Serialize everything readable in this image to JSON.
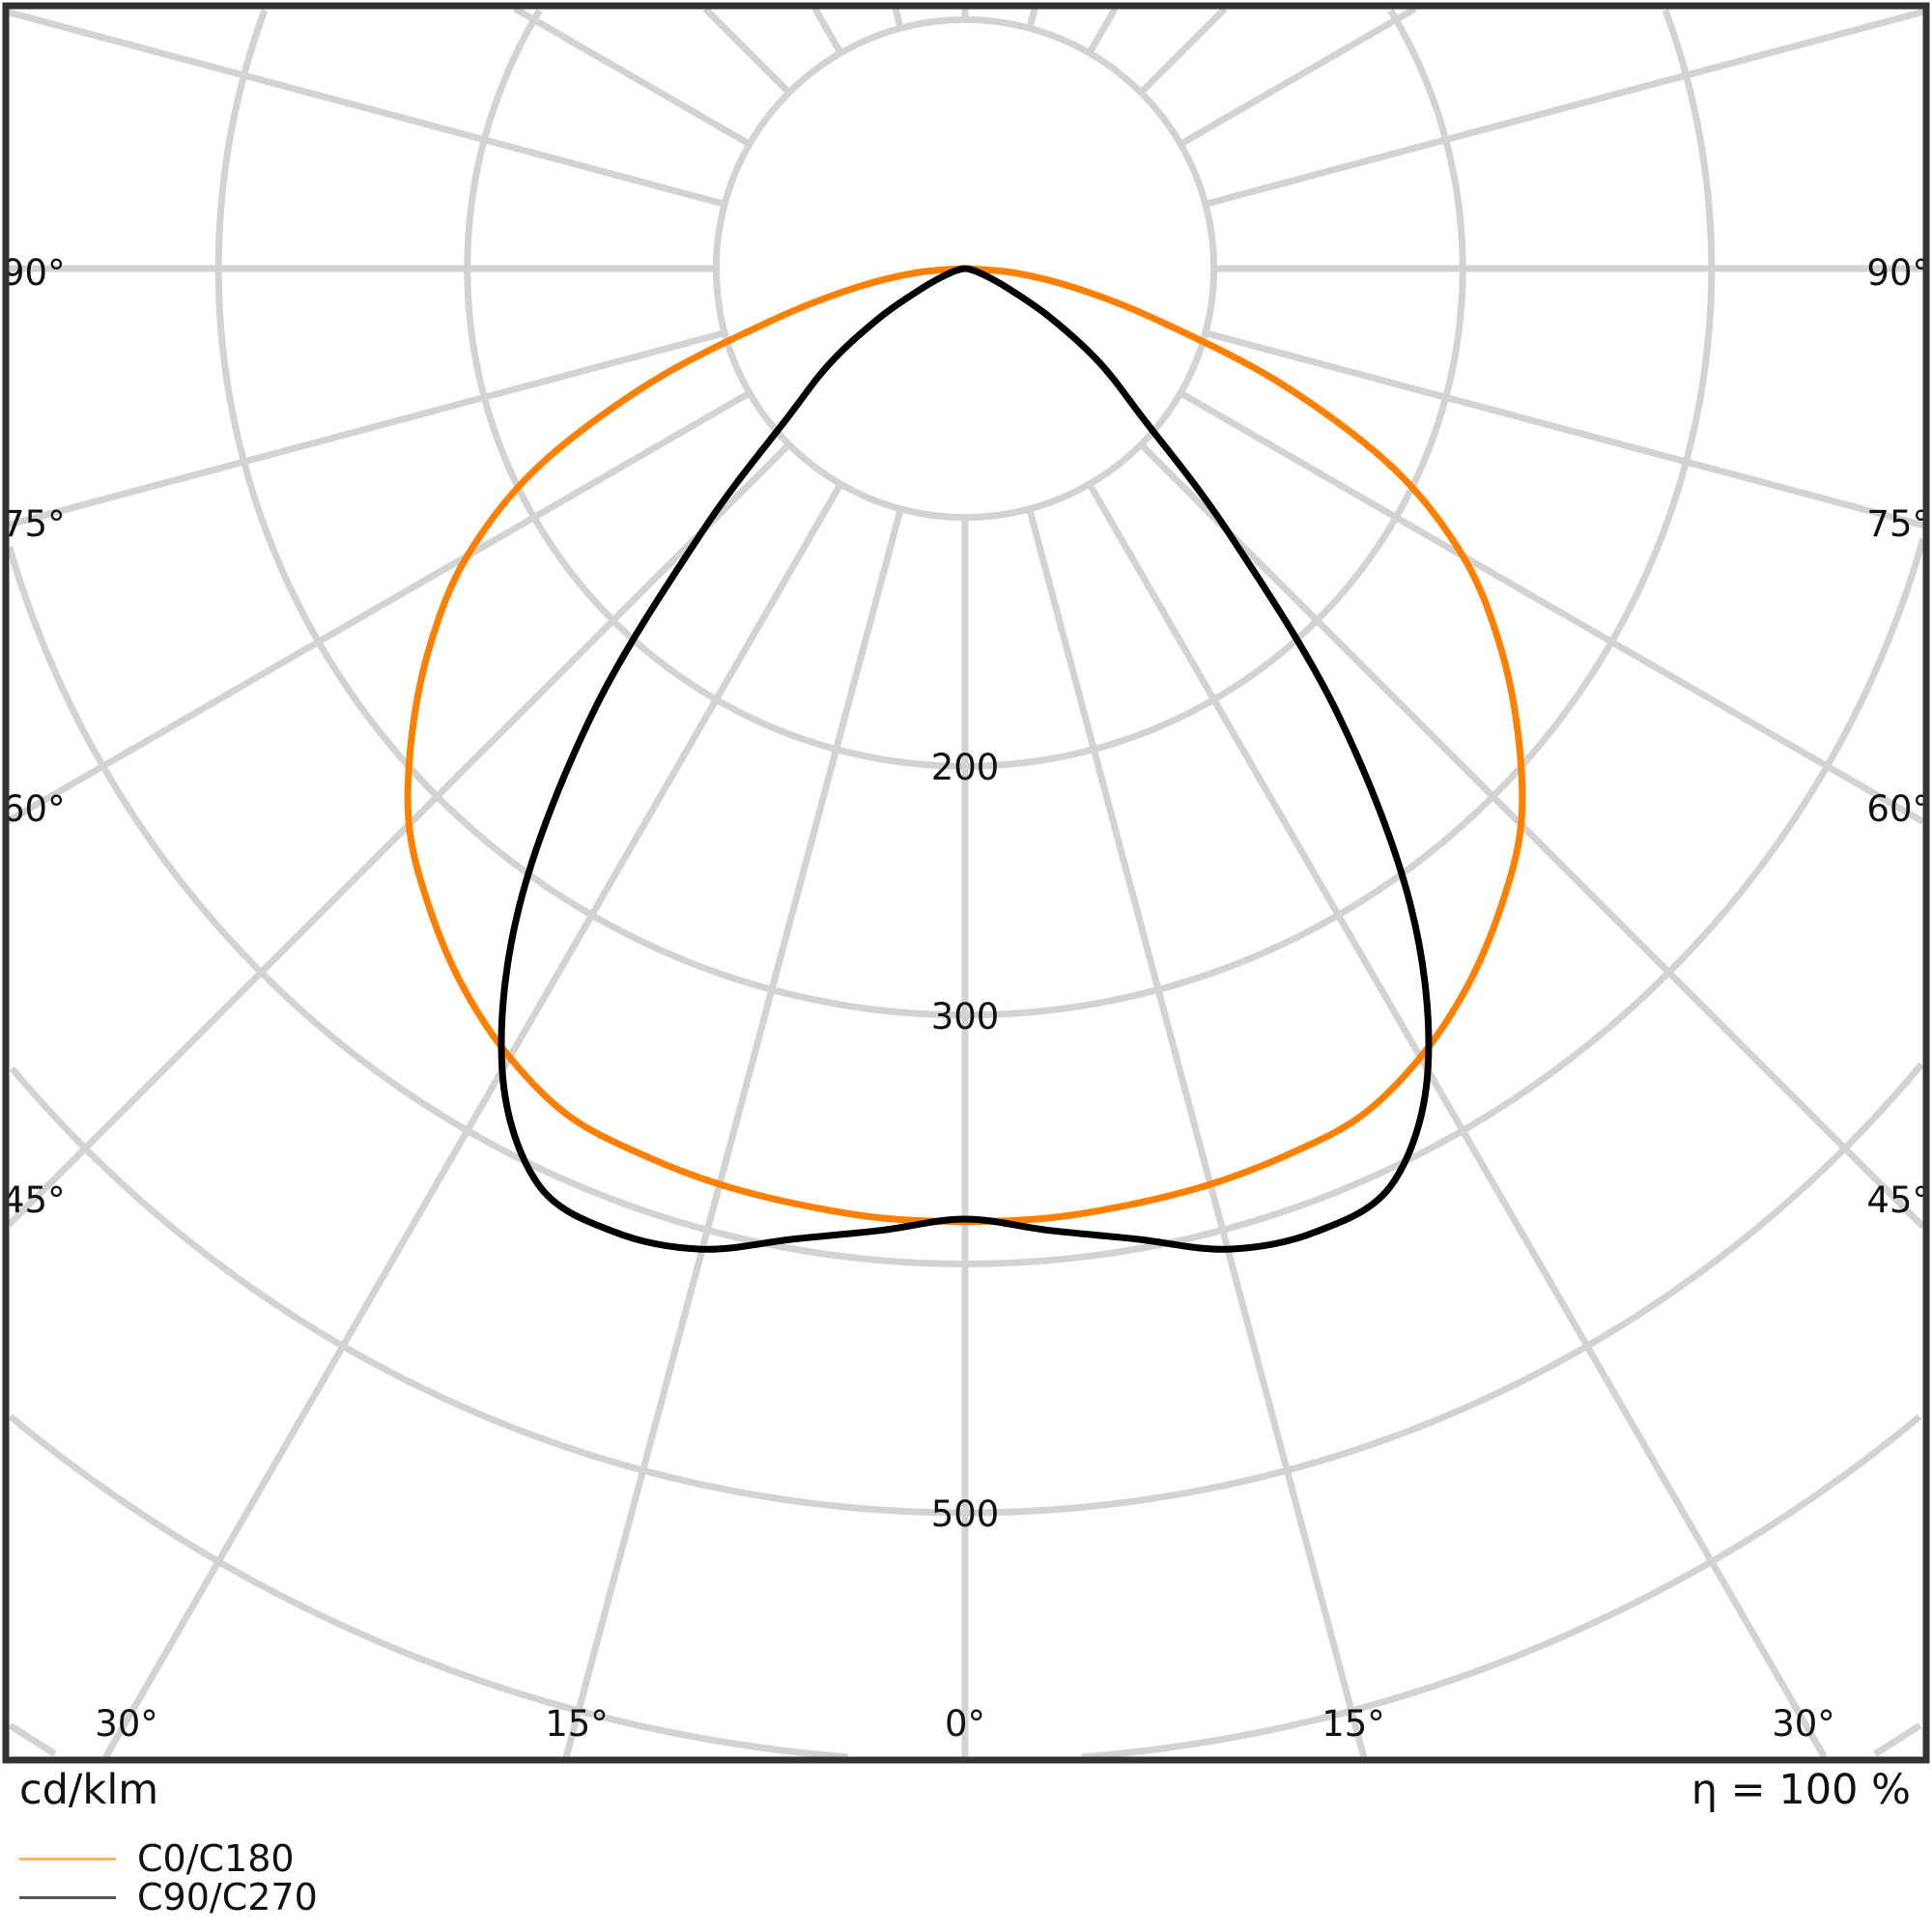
{
  "chart_data": {
    "type": "polar-line",
    "unit_label": "cd/klm",
    "efficiency_label": "η = 100 %",
    "radial_ticks": [
      100,
      200,
      300,
      400,
      500,
      600,
      700,
      800
    ],
    "radial_tick_labels": [
      "200",
      "300",
      "500"
    ],
    "angle_tick_labels": {
      "side": [
        "90°",
        "75°",
        "60°",
        "45°"
      ],
      "bottom": [
        "30°",
        "15°",
        "0°",
        "15°",
        "30°"
      ]
    },
    "angles": [
      0,
      5,
      10,
      15,
      20,
      25,
      30,
      35,
      40,
      45,
      50,
      55,
      60,
      65,
      70,
      75,
      80,
      85,
      90
    ],
    "series": [
      {
        "name": "C0/C180",
        "color": "#ff8000",
        "values": [
          383,
          383,
          382,
          381,
          379,
          376,
          366,
          352,
          335,
          316,
          290,
          262,
          231,
          190,
          135,
          80,
          45,
          20,
          0
        ]
      },
      {
        "name": "C90/C270",
        "color": "#000000",
        "values": [
          382,
          388,
          396,
          408,
          412,
          406,
          372,
          312,
          232,
          149,
          93,
          66,
          40,
          20,
          10,
          5,
          2,
          1,
          0
        ]
      }
    ],
    "grid": true,
    "legend": "bottom-left"
  }
}
